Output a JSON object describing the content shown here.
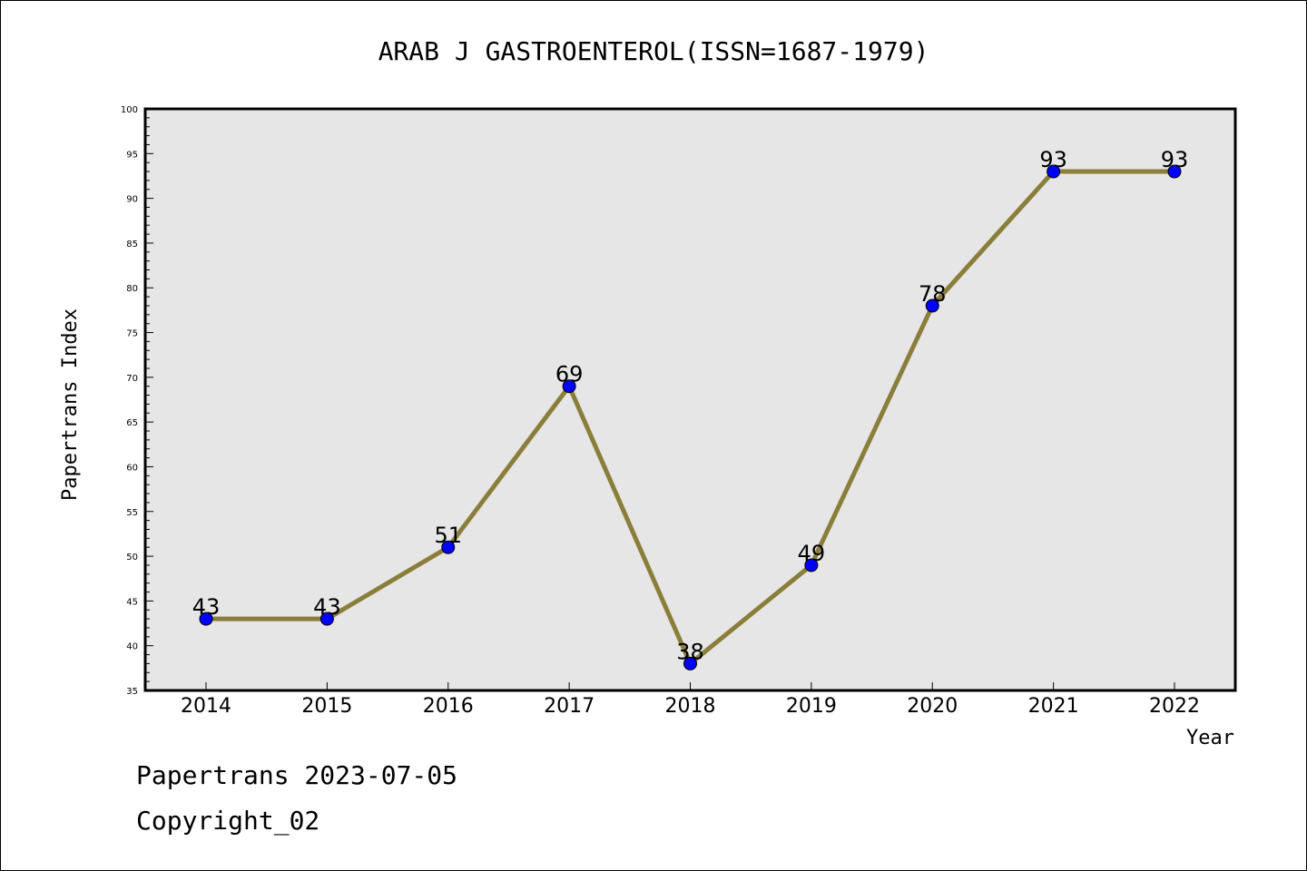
{
  "chart_data": {
    "type": "line",
    "title": "ARAB J GASTROENTEROL(ISSN=1687-1979)",
    "xlabel": "Year",
    "ylabel": "Papertrans Index",
    "categories": [
      "2014",
      "2015",
      "2016",
      "2017",
      "2018",
      "2019",
      "2020",
      "2021",
      "2022"
    ],
    "series": [
      {
        "values": [
          43,
          43,
          51,
          69,
          38,
          49,
          78,
          93,
          93
        ]
      }
    ],
    "data_labels": [
      "43",
      "43",
      "51",
      "69",
      "38",
      "49",
      "78",
      "93",
      "93"
    ],
    "ylim": [
      35,
      100
    ],
    "yticks": [
      35,
      40,
      45,
      50,
      55,
      60,
      65,
      70,
      75,
      80,
      85,
      90,
      95,
      100
    ],
    "grid": false,
    "colors": {
      "line": "#8b7d3a",
      "marker": "#0000ff",
      "plot_bg": "#e6e6e6"
    }
  },
  "footer": {
    "line1": "Papertrans 2023-07-05",
    "line2": "Copyright_02"
  }
}
